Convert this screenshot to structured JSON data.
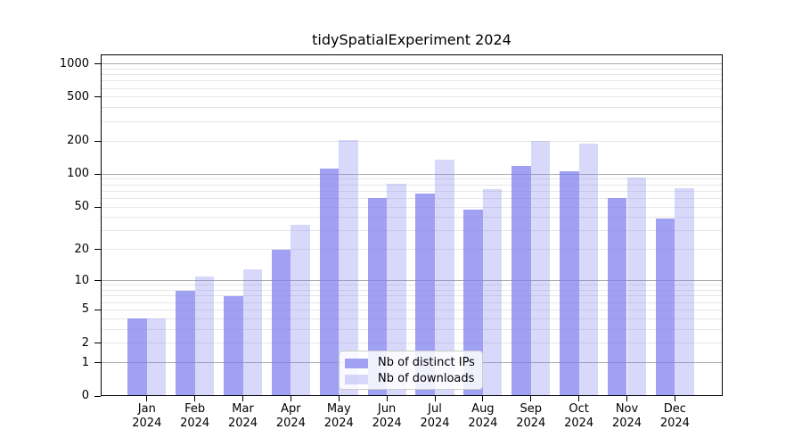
{
  "chart_data": {
    "type": "bar",
    "title": "tidySpatialExperiment 2024",
    "months": [
      "Jan",
      "Feb",
      "Mar",
      "Apr",
      "May",
      "Jun",
      "Jul",
      "Aug",
      "Sep",
      "Oct",
      "Nov",
      "Dec"
    ],
    "year": "2024",
    "categories": [
      "Jan 2024",
      "Feb 2024",
      "Mar 2024",
      "Apr 2024",
      "May 2024",
      "Jun 2024",
      "Jul 2024",
      "Aug 2024",
      "Sep 2024",
      "Oct 2024",
      "Nov 2024",
      "Dec 2024"
    ],
    "series": [
      {
        "name": "Nb of distinct IPs",
        "color": "#7d7df0",
        "alpha": 0.72,
        "values": [
          4,
          8,
          7,
          20,
          112,
          60,
          67,
          47,
          120,
          106,
          60,
          39
        ]
      },
      {
        "name": "Nb of downloads",
        "color": "#7d7df0",
        "alpha": 0.3,
        "values": [
          4,
          11,
          13,
          34,
          205,
          82,
          135,
          73,
          200,
          191,
          94,
          75
        ]
      }
    ],
    "y_scale": "log1p",
    "ylim": [
      0,
      1220
    ],
    "y_ticks": [
      0,
      1,
      2,
      5,
      10,
      20,
      50,
      100,
      200,
      500,
      1000
    ],
    "gridlines": {
      "major": [
        1,
        10,
        100,
        1000
      ],
      "minor": [
        2,
        3,
        4,
        5,
        6,
        7,
        8,
        9,
        20,
        30,
        40,
        50,
        60,
        70,
        80,
        90,
        200,
        300,
        400,
        500,
        600,
        700,
        800,
        900
      ]
    },
    "grid": true,
    "legend_position": "lower center inside"
  },
  "colors": {
    "background": "#ffffff",
    "spine": "#000000",
    "text": "#000000",
    "major_grid": "#ababab",
    "minor_grid": "#e7e7e7",
    "legend_border": "#cccccc"
  }
}
